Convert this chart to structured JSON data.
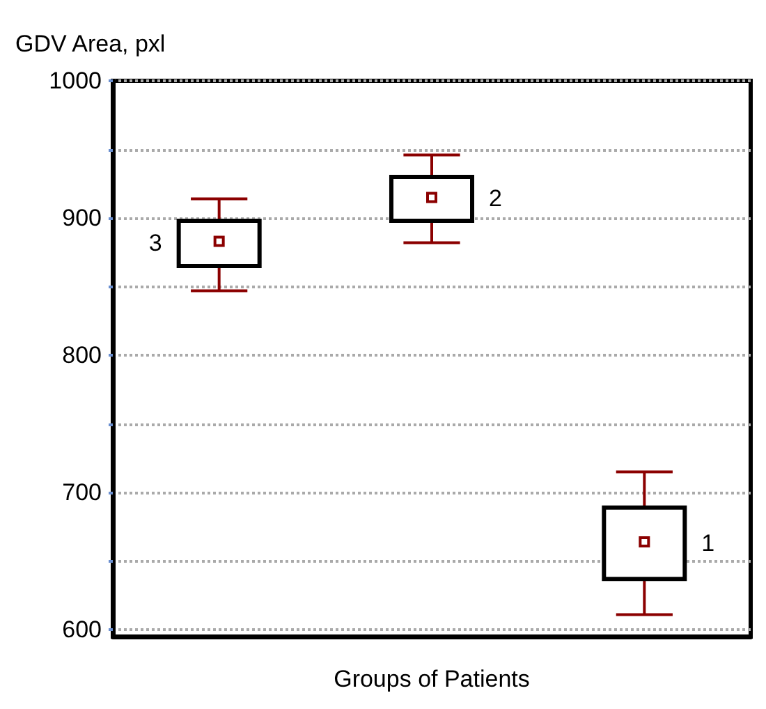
{
  "chart_data": {
    "type": "box",
    "ylabel": "GDV Area, pxl",
    "xlabel": "Groups of Patients",
    "categories": [
      null,
      null,
      null
    ],
    "boxes": [
      {
        "low": 847,
        "q1": 865,
        "median": 883,
        "q3": 898,
        "high": 914
      },
      {
        "low": 882,
        "q1": 898,
        "median": 915,
        "q3": 930,
        "high": 946
      },
      {
        "low": 611,
        "q1": 637,
        "median": 664,
        "q3": 689,
        "high": 715
      }
    ],
    "annotations": [
      "3",
      "2",
      "1"
    ],
    "ylim": [
      595,
      1000
    ],
    "yticks": [
      600,
      {
        "value": 650,
        "label": null
      },
      700,
      {
        "value": 750,
        "label": null
      },
      800,
      {
        "value": 850,
        "label": null
      },
      900,
      {
        "value": 950,
        "label": null
      },
      1000
    ],
    "grid": "y"
  }
}
